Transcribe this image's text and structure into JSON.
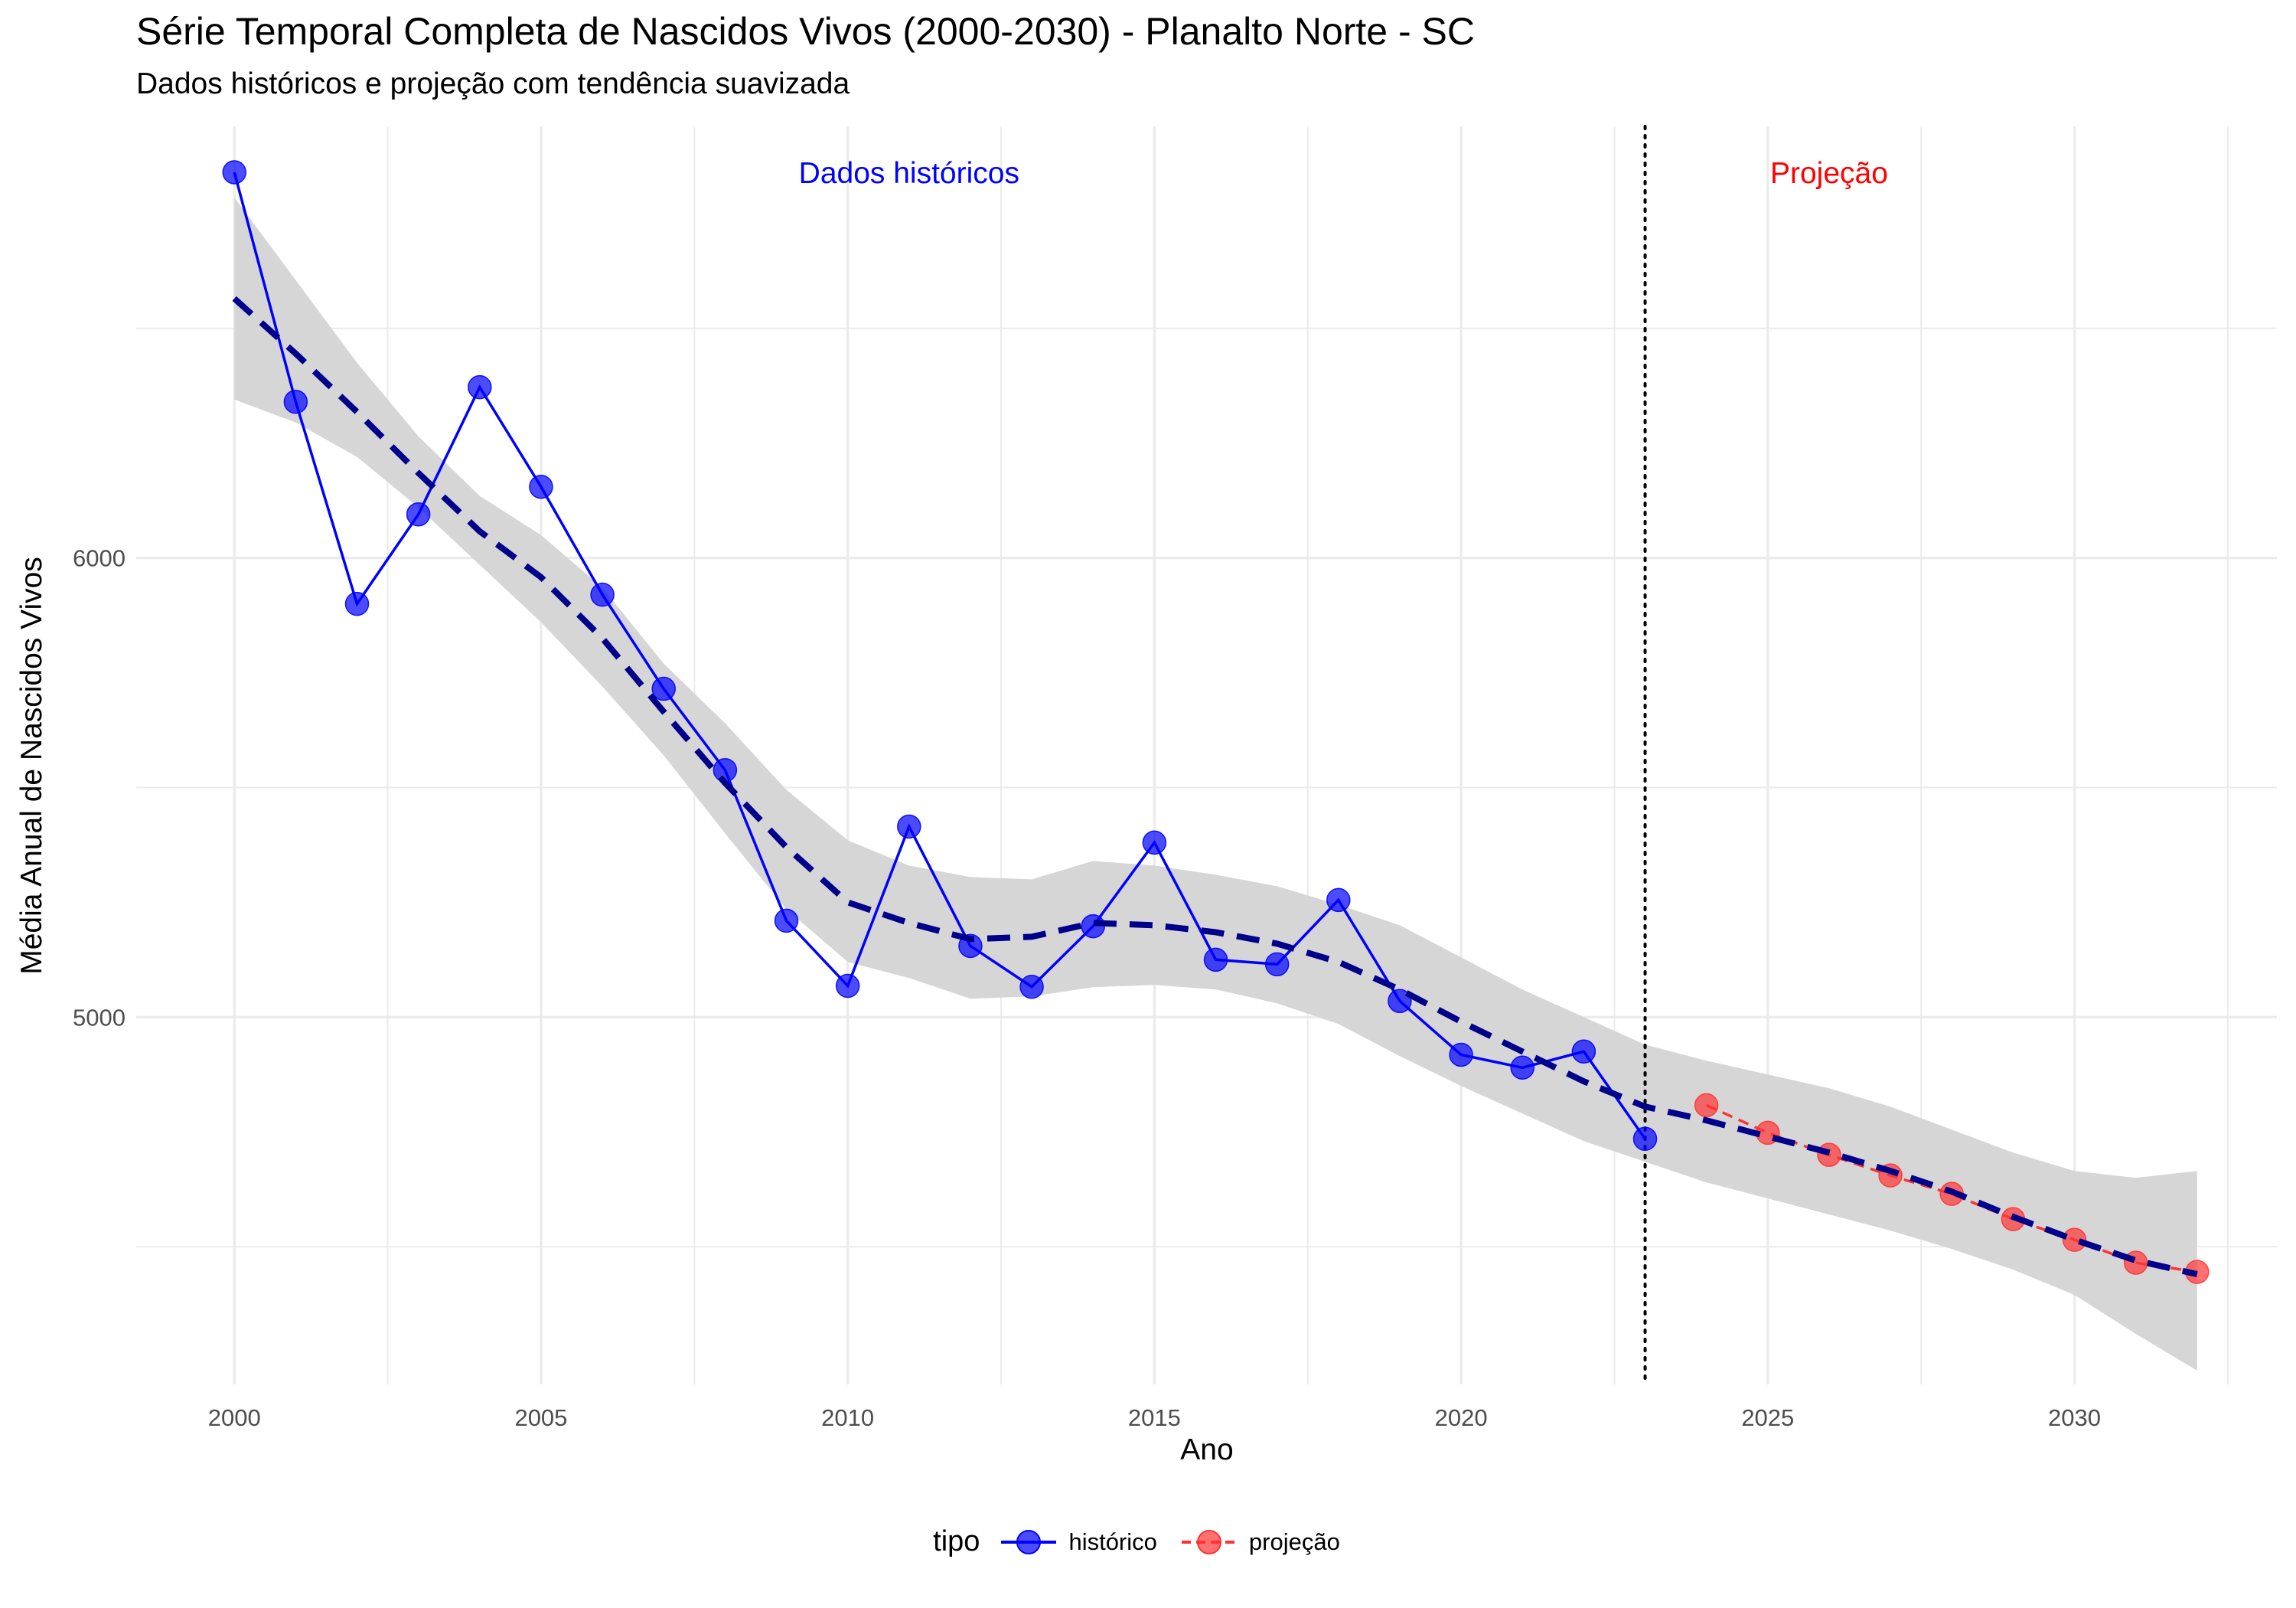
{
  "title": "Série Temporal Completa de Nascidos Vivos (2000-2030) -  Planalto Norte - SC",
  "subtitle": "Dados históricos e projeção com tendência suavizada",
  "colors": {
    "historico": "#0000ff",
    "projecao": "#ff3333",
    "trend": "#00008b",
    "band": "#d6d6d6",
    "grid": "#ebebeb"
  },
  "chart_data": {
    "type": "line",
    "title": "Série Temporal Completa de Nascidos Vivos (2000-2030) -  Planalto Norte - SC",
    "subtitle": "Dados históricos e projeção com tendência suavizada",
    "xlabel": "Ano",
    "ylabel": "Média Anual de Nascidos Vivos",
    "xlim": [
      1998.4,
      2033.3
    ],
    "ylim": [
      4200,
      6940
    ],
    "x_ticks": [
      2000,
      2005,
      2010,
      2015,
      2020,
      2025,
      2030
    ],
    "y_ticks": [
      5000,
      6000
    ],
    "grid": true,
    "legend_position": "bottom",
    "legend_title": "tipo",
    "annotations": [
      {
        "text": "Dados históricos",
        "x": 2011,
        "y": 6840,
        "color": "#0000ff"
      },
      {
        "text": "Projeção",
        "x": 2026,
        "y": 6840,
        "color": "#ff0000"
      }
    ],
    "vline": {
      "x": 2023,
      "style": "dotted"
    },
    "series": [
      {
        "name": "histórico",
        "x": [
          2000,
          2001,
          2002,
          2003,
          2004,
          2005,
          2006,
          2007,
          2008,
          2009,
          2010,
          2011,
          2012,
          2013,
          2014,
          2015,
          2016,
          2017,
          2018,
          2019,
          2020,
          2021,
          2022,
          2023
        ],
        "y": [
          6840,
          6340,
          5900,
          6095,
          6372,
          6155,
          5920,
          5715,
          5538,
          5210,
          5068,
          5415,
          5155,
          5066,
          5198,
          5380,
          5125,
          5115,
          5255,
          5035,
          4918,
          4890,
          4925,
          4735
        ]
      },
      {
        "name": "projeção",
        "x": [
          2024,
          2025,
          2026,
          2027,
          2028,
          2029,
          2030,
          2031,
          2032
        ],
        "y": [
          4808,
          4748,
          4700,
          4655,
          4615,
          4560,
          4515,
          4465,
          4445
        ]
      }
    ],
    "trend": {
      "x": [
        2000,
        2001,
        2002,
        2003,
        2004,
        2005,
        2006,
        2007,
        2008,
        2009,
        2010,
        2011,
        2012,
        2013,
        2014,
        2015,
        2016,
        2017,
        2018,
        2019,
        2020,
        2021,
        2022,
        2023,
        2024,
        2025,
        2026,
        2027,
        2028,
        2029,
        2030,
        2031,
        2032
      ],
      "y": [
        6565,
        6445,
        6318,
        6185,
        6058,
        5958,
        5825,
        5665,
        5510,
        5370,
        5250,
        5205,
        5170,
        5175,
        5205,
        5200,
        5185,
        5160,
        5120,
        5060,
        4990,
        4925,
        4860,
        4805,
        4775,
        4740,
        4705,
        4665,
        4620,
        4565,
        4515,
        4470,
        4440
      ],
      "lower": [
        6345,
        6295,
        6220,
        6110,
        5985,
        5860,
        5720,
        5570,
        5400,
        5235,
        5120,
        5085,
        5040,
        5045,
        5065,
        5070,
        5060,
        5030,
        4985,
        4915,
        4850,
        4790,
        4730,
        4685,
        4640,
        4605,
        4570,
        4535,
        4495,
        4450,
        4395,
        4310,
        4230
      ],
      "upper": [
        6785,
        6605,
        6425,
        6265,
        6135,
        6050,
        5935,
        5770,
        5640,
        5495,
        5385,
        5330,
        5305,
        5300,
        5340,
        5330,
        5310,
        5285,
        5245,
        5200,
        5130,
        5060,
        5000,
        4940,
        4905,
        4875,
        4845,
        4805,
        4755,
        4705,
        4665,
        4650,
        4665
      ]
    }
  },
  "legend": {
    "title": "tipo",
    "items": [
      "histórico",
      "projeção"
    ]
  }
}
